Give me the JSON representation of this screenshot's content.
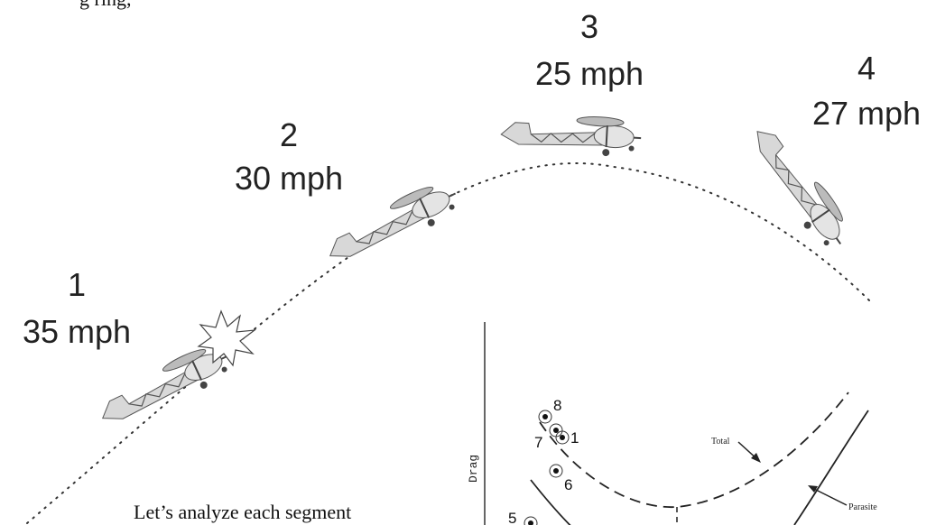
{
  "header_fragment": "g ring,",
  "stages": [
    {
      "number": "1",
      "speed": "35 mph"
    },
    {
      "number": "2",
      "speed": "30 mph"
    },
    {
      "number": "3",
      "speed": "25 mph"
    },
    {
      "number": "4",
      "speed": "27 mph"
    }
  ],
  "graph": {
    "axis_label": "Drag",
    "curves": [
      "Total",
      "Parasite"
    ],
    "points": [
      "8",
      "7",
      "1",
      "6",
      "5"
    ]
  },
  "body_text": "Let’s analyze each segment"
}
